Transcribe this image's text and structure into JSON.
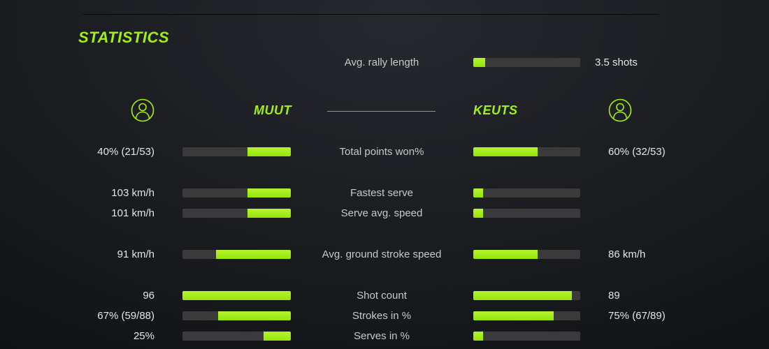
{
  "title": "STATISTICS",
  "colors": {
    "accent_green": "#a2ee17",
    "divider_green": "#84af2c",
    "bar_track": "#3a3a3b",
    "value_text": "#e4e5e7",
    "label_text": "#c7c9cb"
  },
  "players": {
    "left": {
      "name": "MUUT",
      "icon": "person-icon"
    },
    "right": {
      "name": "KEUTS",
      "icon": "person-icon"
    }
  },
  "rally": {
    "label": "Avg. rally length",
    "value": "3.5 shots",
    "fill_pct": 11
  },
  "rows": [
    {
      "label": "Total points won%",
      "left": {
        "value": "40% (21/53)",
        "fill_pct": 40
      },
      "right": {
        "value": "60% (32/53)",
        "fill_pct": 60
      }
    },
    {
      "label": "Fastest serve",
      "left": {
        "value": "103 km/h",
        "fill_pct": 40
      },
      "right": {
        "value": "",
        "fill_pct": 9
      }
    },
    {
      "label": "Serve avg. speed",
      "left": {
        "value": "101 km/h",
        "fill_pct": 40
      },
      "right": {
        "value": "",
        "fill_pct": 9
      }
    },
    {
      "label": "Avg. ground stroke speed",
      "left": {
        "value": "91 km/h",
        "fill_pct": 69
      },
      "right": {
        "value": "86 km/h",
        "fill_pct": 60
      }
    },
    {
      "label": "Shot count",
      "left": {
        "value": "96",
        "fill_pct": 100
      },
      "right": {
        "value": "89",
        "fill_pct": 92
      }
    },
    {
      "label": "Strokes in %",
      "left": {
        "value": "67% (59/88)",
        "fill_pct": 67
      },
      "right": {
        "value": "75% (67/89)",
        "fill_pct": 75
      }
    },
    {
      "label": "Serves in %",
      "left": {
        "value": "25%",
        "fill_pct": 25
      },
      "right": {
        "value": "",
        "fill_pct": 9
      }
    }
  ]
}
